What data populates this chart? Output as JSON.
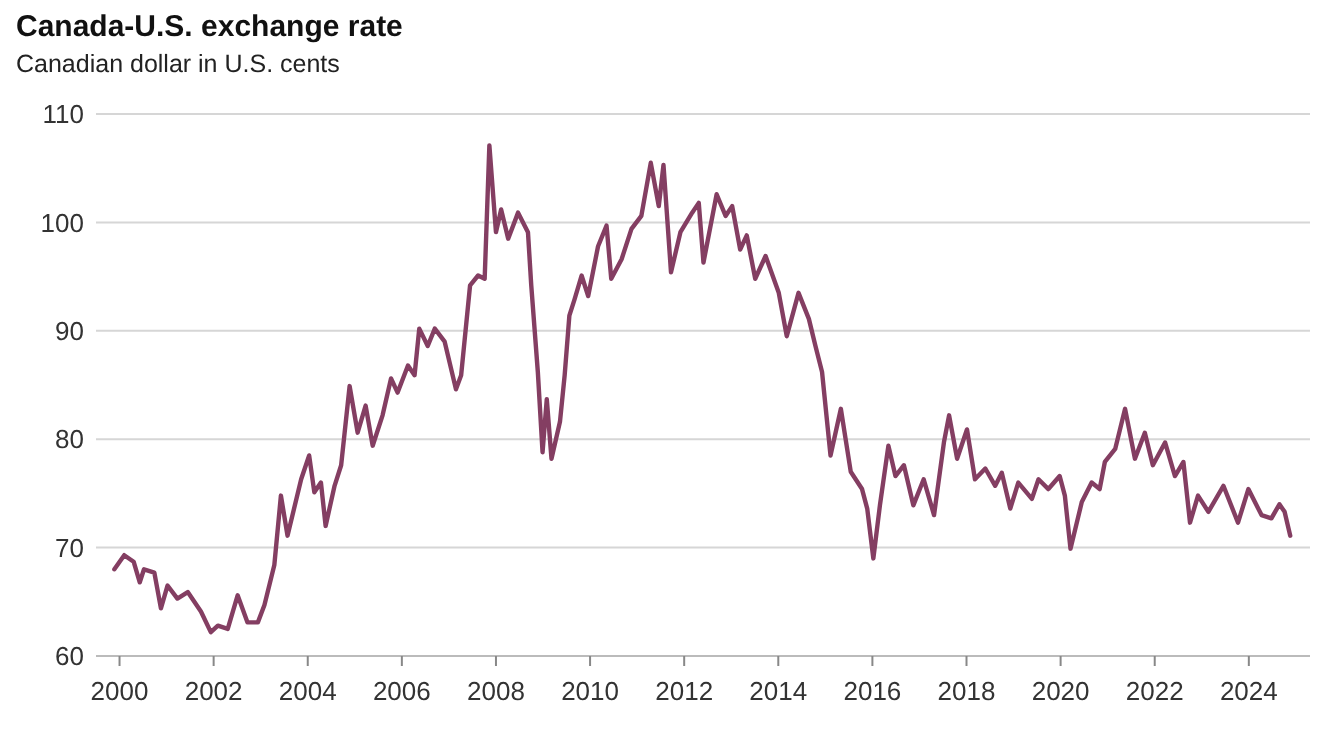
{
  "chart_data": {
    "type": "line",
    "title": "Canada-U.S. exchange rate",
    "subtitle": "Canadian dollar in U.S. cents",
    "x": [
      1999.89,
      2000.1,
      2000.3,
      2000.43,
      2000.52,
      2000.74,
      2000.88,
      2001.02,
      2001.23,
      2001.45,
      2001.73,
      2001.94,
      2002.09,
      2002.3,
      2002.51,
      2002.72,
      2002.94,
      2003.08,
      2003.29,
      2003.43,
      2003.57,
      2003.86,
      2004.03,
      2004.14,
      2004.28,
      2004.38,
      2004.57,
      2004.71,
      2004.89,
      2005.06,
      2005.23,
      2005.38,
      2005.59,
      2005.77,
      2005.91,
      2006.13,
      2006.27,
      2006.37,
      2006.55,
      2006.7,
      2006.91,
      2007.15,
      2007.26,
      2007.45,
      2007.62,
      2007.76,
      2007.86,
      2008.0,
      2008.11,
      2008.26,
      2008.47,
      2008.68,
      2008.75,
      2008.89,
      2008.99,
      2009.08,
      2009.18,
      2009.36,
      2009.46,
      2009.56,
      2009.67,
      2009.82,
      2009.96,
      2010.17,
      2010.35,
      2010.45,
      2010.67,
      2010.88,
      2011.09,
      2011.29,
      2011.46,
      2011.56,
      2011.72,
      2011.92,
      2012.17,
      2012.31,
      2012.41,
      2012.69,
      2012.88,
      2013.02,
      2013.19,
      2013.33,
      2013.51,
      2013.73,
      2014.01,
      2014.18,
      2014.43,
      2014.65,
      2014.79,
      2014.93,
      2015.11,
      2015.33,
      2015.54,
      2015.78,
      2015.89,
      2016.02,
      2016.16,
      2016.34,
      2016.49,
      2016.67,
      2016.87,
      2017.09,
      2017.31,
      2017.52,
      2017.63,
      2017.8,
      2018.01,
      2018.18,
      2018.4,
      2018.61,
      2018.75,
      2018.93,
      2019.1,
      2019.39,
      2019.53,
      2019.74,
      2019.98,
      2020.09,
      2020.21,
      2020.45,
      2020.66,
      2020.83,
      2020.94,
      2021.16,
      2021.37,
      2021.58,
      2021.79,
      2021.96,
      2022.22,
      2022.43,
      2022.61,
      2022.75,
      2022.92,
      2023.14,
      2023.46,
      2023.77,
      2023.99,
      2024.27,
      2024.48,
      2024.65,
      2024.76,
      2024.88
    ],
    "series": [
      {
        "color": "#843e62",
        "values": [
          68.0,
          69.3,
          68.7,
          66.8,
          68.0,
          67.7,
          64.4,
          66.5,
          65.3,
          65.9,
          64.1,
          62.2,
          62.8,
          62.5,
          65.6,
          63.1,
          63.1,
          64.7,
          68.4,
          74.8,
          71.1,
          76.3,
          78.5,
          75.1,
          76.0,
          72.0,
          75.7,
          77.6,
          84.9,
          80.6,
          83.1,
          79.4,
          82.2,
          85.6,
          84.3,
          86.8,
          85.9,
          90.2,
          88.6,
          90.2,
          89.0,
          84.6,
          85.9,
          94.2,
          95.1,
          94.8,
          107.1,
          99.1,
          101.2,
          98.5,
          100.9,
          99.1,
          94.2,
          86.2,
          78.8,
          83.7,
          78.2,
          81.6,
          85.9,
          91.4,
          92.9,
          95.1,
          93.2,
          97.8,
          99.7,
          94.8,
          96.6,
          99.4,
          100.6,
          105.5,
          101.5,
          105.3,
          95.4,
          99.1,
          100.9,
          101.8,
          96.3,
          102.6,
          100.6,
          101.5,
          97.5,
          98.8,
          94.8,
          96.9,
          93.5,
          89.5,
          93.5,
          91.1,
          88.6,
          86.2,
          78.5,
          82.8,
          77.0,
          75.4,
          73.6,
          69.0,
          73.9,
          79.4,
          76.6,
          77.6,
          73.9,
          76.3,
          73.0,
          79.7,
          82.2,
          78.2,
          80.9,
          76.3,
          77.3,
          75.7,
          76.9,
          73.6,
          76.0,
          74.5,
          76.3,
          75.4,
          76.6,
          74.8,
          69.9,
          74.2,
          76.0,
          75.4,
          77.9,
          79.1,
          82.8,
          78.2,
          80.6,
          77.6,
          79.7,
          76.6,
          77.9,
          72.3,
          74.8,
          73.3,
          75.7,
          72.3,
          75.4,
          73.0,
          72.7,
          74.0,
          73.3,
          71.1
        ]
      }
    ],
    "xlim": [
      1999.5,
      2025.3
    ],
    "xticks": [
      2000,
      2002,
      2004,
      2006,
      2008,
      2010,
      2012,
      2014,
      2016,
      2018,
      2020,
      2022,
      2024
    ],
    "ylim": [
      60,
      110
    ],
    "yticks": [
      60,
      70,
      80,
      90,
      100,
      110
    ],
    "grid": "y",
    "marker": "none",
    "line_style": "solid"
  }
}
